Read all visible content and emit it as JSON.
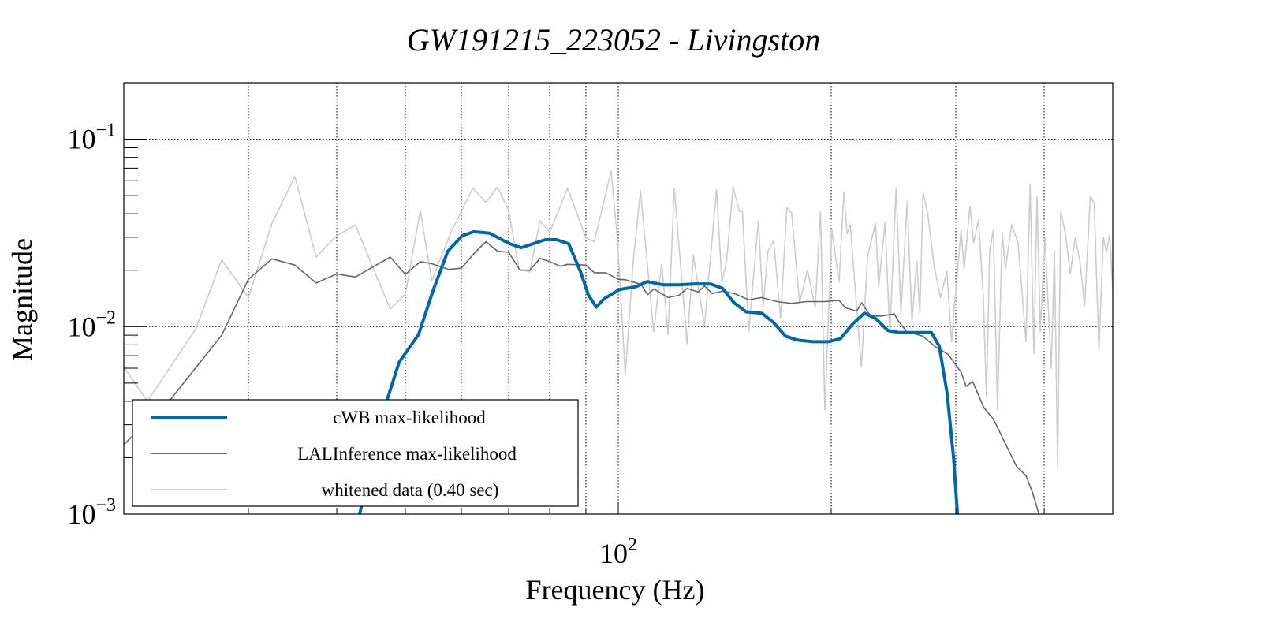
{
  "chart_data": {
    "type": "line",
    "title": "GW191215_223052 - Livingston",
    "xlabel": "Frequency (Hz)",
    "ylabel": "Magnitude",
    "xscale": "log",
    "yscale": "log",
    "xlim": [
      20,
      500
    ],
    "ylim": [
      0.001,
      0.2
    ],
    "grid": true,
    "legend_position": "bottom-left",
    "x_gridlines": [
      30,
      40,
      50,
      60,
      70,
      80,
      90,
      100,
      200,
      300,
      400
    ],
    "y_gridlines": [
      0.1,
      0.01
    ],
    "x_tick_labels": [
      {
        "value": 100,
        "base": "10",
        "exp": "2"
      }
    ],
    "y_tick_labels": [
      {
        "value": 0.1,
        "base": "10",
        "exp": "−1"
      },
      {
        "value": 0.01,
        "base": "10",
        "exp": "−2"
      },
      {
        "value": 0.001,
        "base": "10",
        "exp": "−3"
      }
    ],
    "series": [
      {
        "name": "cWB max-likelihood",
        "color": "#0068a8",
        "points": [
          [
            43.1,
            0.001
          ],
          [
            45.9,
            0.00297
          ],
          [
            49.0,
            0.00646
          ],
          [
            52.2,
            0.00907
          ],
          [
            54.7,
            0.0155
          ],
          [
            57.4,
            0.0252
          ],
          [
            60.2,
            0.0306
          ],
          [
            62.5,
            0.0321
          ],
          [
            65.8,
            0.0315
          ],
          [
            70.2,
            0.0277
          ],
          [
            72.9,
            0.0264
          ],
          [
            75.8,
            0.0277
          ],
          [
            78.8,
            0.0291
          ],
          [
            81.8,
            0.0291
          ],
          [
            85.1,
            0.0277
          ],
          [
            88.4,
            0.0197
          ],
          [
            90.7,
            0.0148
          ],
          [
            93.1,
            0.0127
          ],
          [
            95.5,
            0.0141
          ],
          [
            100.5,
            0.0158
          ],
          [
            105.8,
            0.0163
          ],
          [
            109.9,
            0.0174
          ],
          [
            115.7,
            0.0167
          ],
          [
            121.9,
            0.0167
          ],
          [
            128.3,
            0.0169
          ],
          [
            135.0,
            0.0169
          ],
          [
            140.4,
            0.016
          ],
          [
            145.8,
            0.0134
          ],
          [
            151.6,
            0.012
          ],
          [
            159.6,
            0.0118
          ],
          [
            165.8,
            0.0105
          ],
          [
            172.3,
            0.0089
          ],
          [
            179.1,
            0.00848
          ],
          [
            188.5,
            0.00831
          ],
          [
            198.4,
            0.00831
          ],
          [
            206.2,
            0.00865
          ],
          [
            214.3,
            0.0103
          ],
          [
            222.8,
            0.0118
          ],
          [
            231.5,
            0.011
          ],
          [
            240.6,
            0.00953
          ],
          [
            250.0,
            0.0093
          ],
          [
            263.2,
            0.0093
          ],
          [
            277.1,
            0.0093
          ],
          [
            284.3,
            0.00785
          ],
          [
            291.7,
            0.00438
          ],
          [
            297.8,
            0.00201
          ],
          [
            301.6,
            0.001
          ]
        ]
      },
      {
        "name": "LALInference max-likelihood",
        "color": "#666666",
        "points": [
          [
            20,
            0.00235
          ],
          [
            23.3,
            0.0041
          ],
          [
            27.5,
            0.009
          ],
          [
            30,
            0.0179
          ],
          [
            32.4,
            0.023
          ],
          [
            34.9,
            0.0213
          ],
          [
            37.4,
            0.0171
          ],
          [
            40,
            0.0191
          ],
          [
            42.5,
            0.0184
          ],
          [
            47.6,
            0.0235
          ],
          [
            50,
            0.019
          ],
          [
            52.5,
            0.0222
          ],
          [
            54.4,
            0.0217
          ],
          [
            57.6,
            0.0202
          ],
          [
            60,
            0.0205
          ],
          [
            62.7,
            0.0248
          ],
          [
            65.0,
            0.0284
          ],
          [
            67.5,
            0.0253
          ],
          [
            70,
            0.0249
          ],
          [
            72.6,
            0.02
          ],
          [
            75,
            0.02
          ],
          [
            77.5,
            0.0231
          ],
          [
            80,
            0.0222
          ],
          [
            82.8,
            0.021
          ],
          [
            84.8,
            0.0215
          ],
          [
            90,
            0.0213
          ],
          [
            92.5,
            0.0194
          ],
          [
            96,
            0.0194
          ],
          [
            100,
            0.0179
          ],
          [
            102.3,
            0.0178
          ],
          [
            107.7,
            0.0168
          ],
          [
            110,
            0.0148
          ],
          [
            112.3,
            0.0159
          ],
          [
            117.6,
            0.0143
          ],
          [
            121.9,
            0.0147
          ],
          [
            125.1,
            0.016
          ],
          [
            129.7,
            0.0153
          ],
          [
            132.4,
            0.0165
          ],
          [
            135.8,
            0.015
          ],
          [
            140.8,
            0.0155
          ],
          [
            146.7,
            0.0149
          ],
          [
            152.9,
            0.0139
          ],
          [
            159.4,
            0.0143
          ],
          [
            167.8,
            0.0136
          ],
          [
            175.6,
            0.0133
          ],
          [
            184.4,
            0.0136
          ],
          [
            195.9,
            0.0136
          ],
          [
            205.2,
            0.0138
          ],
          [
            209.4,
            0.0126
          ],
          [
            217.3,
            0.0121
          ],
          [
            220.8,
            0.0134
          ],
          [
            227.5,
            0.0114
          ],
          [
            235.8,
            0.0114
          ],
          [
            245.5,
            0.0117
          ],
          [
            249.3,
            0.0106
          ],
          [
            255.8,
            0.0094
          ],
          [
            269.4,
            0.0089
          ],
          [
            280.8,
            0.0078
          ],
          [
            292.8,
            0.0071
          ],
          [
            305.3,
            0.0057
          ],
          [
            310.2,
            0.0048
          ],
          [
            316.8,
            0.0051
          ],
          [
            328.7,
            0.0037
          ],
          [
            339.2,
            0.0032
          ],
          [
            352.1,
            0.0024
          ],
          [
            365.5,
            0.0018
          ],
          [
            377.1,
            0.0016
          ],
          [
            385.1,
            0.0013
          ],
          [
            393.2,
            0.001
          ]
        ]
      },
      {
        "name": "whitened data (0.40 sec)",
        "color": "#cccccc",
        "points": [
          [
            20,
            0.0061
          ],
          [
            21.6,
            0.004
          ],
          [
            25.3,
            0.0098
          ],
          [
            27.5,
            0.0227
          ],
          [
            30,
            0.0143
          ],
          [
            32.4,
            0.0356
          ],
          [
            34.9,
            0.0633
          ],
          [
            37.4,
            0.0235
          ],
          [
            40,
            0.0306
          ],
          [
            42.5,
            0.0348
          ],
          [
            47.6,
            0.0124
          ],
          [
            50,
            0.0149
          ],
          [
            52.5,
            0.0417
          ],
          [
            54.5,
            0.0176
          ],
          [
            58,
            0.0318
          ],
          [
            62.3,
            0.0548
          ],
          [
            65,
            0.046
          ],
          [
            67.5,
            0.0556
          ],
          [
            70,
            0.0417
          ],
          [
            72.4,
            0.0203
          ],
          [
            75,
            0.0196
          ],
          [
            77.5,
            0.0367
          ],
          [
            80,
            0.0318
          ],
          [
            84.8,
            0.0548
          ],
          [
            90,
            0.0298
          ],
          [
            92.5,
            0.0284
          ],
          [
            97.7,
            0.0675
          ],
          [
            99.7,
            0.0299
          ],
          [
            102.3,
            0.0055
          ],
          [
            105,
            0.0224
          ],
          [
            107.5,
            0.0531
          ],
          [
            112.2,
            0.0094
          ],
          [
            115.2,
            0.0217
          ],
          [
            117.6,
            0.0091
          ],
          [
            120,
            0.0548
          ],
          [
            125.1,
            0.0081
          ],
          [
            127.7,
            0.0239
          ],
          [
            132.4,
            0.0101
          ],
          [
            137.7,
            0.0539
          ],
          [
            140.1,
            0.0173
          ],
          [
            142.3,
            0.0224
          ],
          [
            145.3,
            0.0557
          ],
          [
            148.3,
            0.0411
          ],
          [
            149.8,
            0.0417
          ],
          [
            152.9,
            0.0094
          ],
          [
            157.8,
            0.0368
          ],
          [
            160.2,
            0.0126
          ],
          [
            162.7,
            0.0251
          ],
          [
            165.8,
            0.0289
          ],
          [
            169.6,
            0.0111
          ],
          [
            173.1,
            0.0431
          ],
          [
            175.8,
            0.0405
          ],
          [
            180.4,
            0.0134
          ],
          [
            185.1,
            0.02
          ],
          [
            189.9,
            0.0126
          ],
          [
            193.1,
            0.0411
          ],
          [
            195.9,
            0.0036
          ],
          [
            200.4,
            0.0329
          ],
          [
            205.2,
            0.0173
          ],
          [
            208.4,
            0.0523
          ],
          [
            210.6,
            0.0313
          ],
          [
            212.8,
            0.035
          ],
          [
            220.6,
            0.0061
          ],
          [
            225.2,
            0.0239
          ],
          [
            231.0,
            0.0356
          ],
          [
            233.4,
            0.0163
          ],
          [
            238.3,
            0.0361
          ],
          [
            242.0,
            0.0091
          ],
          [
            247.0,
            0.0548
          ],
          [
            250.9,
            0.0118
          ],
          [
            256.1,
            0.0467
          ],
          [
            260.1,
            0.0107
          ],
          [
            264.2,
            0.0224
          ],
          [
            266.9,
            0.0118
          ],
          [
            269.7,
            0.0523
          ],
          [
            273.8,
            0.0398
          ],
          [
            279.6,
            0.021
          ],
          [
            285.4,
            0.0143
          ],
          [
            291.4,
            0.0197
          ],
          [
            295.9,
            0.0083
          ],
          [
            301.5,
            0.0191
          ],
          [
            305.2,
            0.0329
          ],
          [
            308.3,
            0.0203
          ],
          [
            314.1,
            0.0439
          ],
          [
            318.0,
            0.028
          ],
          [
            323.0,
            0.0373
          ],
          [
            328.1,
            0.0143
          ],
          [
            331.5,
            0.0042
          ],
          [
            334.9,
            0.0254
          ],
          [
            339.0,
            0.0329
          ],
          [
            343.6,
            0.0036
          ],
          [
            348.9,
            0.0318
          ],
          [
            352.5,
            0.0203
          ],
          [
            359.9,
            0.035
          ],
          [
            367.4,
            0.028
          ],
          [
            377.0,
            0.0083
          ],
          [
            382.1,
            0.0575
          ],
          [
            386.8,
            0.0072
          ],
          [
            390.8,
            0.0498
          ],
          [
            394.9,
            0.0094
          ],
          [
            401.0,
            0.0299
          ],
          [
            409.4,
            0.006
          ],
          [
            413.6,
            0.0254
          ],
          [
            417.9,
            0.0018
          ],
          [
            422.2,
            0.0411
          ],
          [
            428.9,
            0.0309
          ],
          [
            435.5,
            0.0191
          ],
          [
            442.4,
            0.0299
          ],
          [
            449.3,
            0.0224
          ],
          [
            456.3,
            0.013
          ],
          [
            464.9,
            0.0498
          ],
          [
            470.7,
            0.0453
          ],
          [
            478.0,
            0.0075
          ],
          [
            485,
            0.03
          ],
          [
            490,
            0.025
          ],
          [
            495,
            0.031
          ],
          [
            500,
            0.016
          ]
        ]
      }
    ]
  }
}
